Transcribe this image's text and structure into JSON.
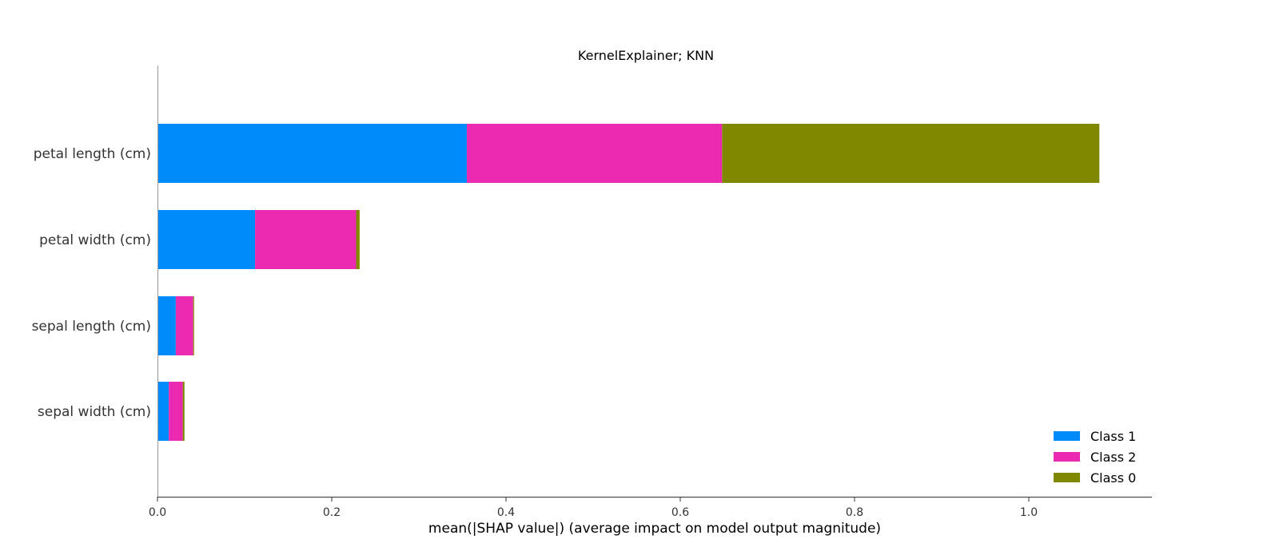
{
  "chart_data": {
    "type": "bar",
    "orientation": "horizontal",
    "stacked": true,
    "title": "KernelExplainer; KNN",
    "xlabel": "mean(|SHAP value|) (average impact on model output magnitude)",
    "ylabel": "",
    "xlim": [
      0,
      1.135
    ],
    "xticks": [
      "0.0",
      "0.2",
      "0.4",
      "0.6",
      "0.8",
      "1.0"
    ],
    "categories": [
      "petal length (cm)",
      "petal width (cm)",
      "sepal length (cm)",
      "sepal width (cm)"
    ],
    "series": [
      {
        "name": "Class 1",
        "color": "#008bfb",
        "values": [
          0.355,
          0.112,
          0.021,
          0.013
        ]
      },
      {
        "name": "Class 2",
        "color": "#ea2ab0",
        "values": [
          0.293,
          0.116,
          0.02,
          0.016
        ]
      },
      {
        "name": "Class 0",
        "color": "#808800",
        "values": [
          0.433,
          0.004,
          0.001,
          0.002
        ]
      }
    ],
    "legend_position": "lower-right",
    "grid": false
  }
}
